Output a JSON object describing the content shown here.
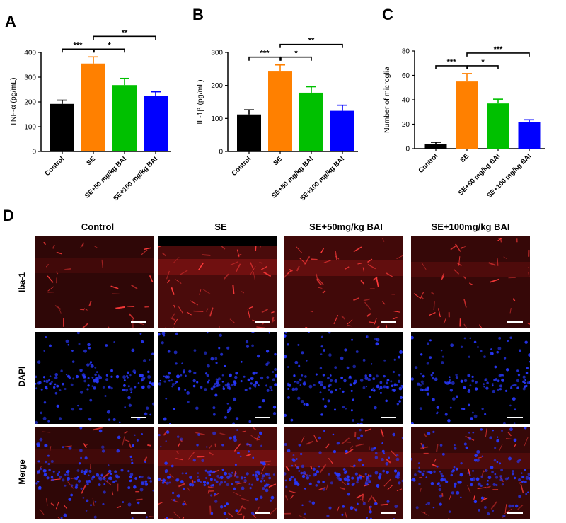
{
  "panels": {
    "A": "A",
    "B": "B",
    "C": "C",
    "D": "D"
  },
  "chart_data": [
    {
      "type": "bar",
      "panel": "A",
      "categories": [
        "Control",
        "SE",
        "SE+50 mg/kg BAI",
        "SE+100 mg/kg BAI"
      ],
      "values": [
        192,
        355,
        268,
        223
      ],
      "errors": [
        15,
        27,
        27,
        18
      ],
      "colors": [
        "#000000",
        "#FF8000",
        "#00C000",
        "#0000FF"
      ],
      "ylabel": "TNF-α (pg/mL)",
      "ylim": [
        0,
        400
      ],
      "yticks": [
        0,
        100,
        200,
        300,
        400
      ],
      "significance": [
        {
          "from": 0,
          "to": 1,
          "label": "***"
        },
        {
          "from": 1,
          "to": 2,
          "label": "*"
        },
        {
          "from": 1,
          "to": 3,
          "label": "**"
        }
      ]
    },
    {
      "type": "bar",
      "panel": "B",
      "categories": [
        "Control",
        "SE",
        "SE+50 mg/kg BAI",
        "SE+100 mg/kg BAI"
      ],
      "values": [
        112,
        242,
        178,
        123
      ],
      "errors": [
        14,
        20,
        18,
        17
      ],
      "colors": [
        "#000000",
        "#FF8000",
        "#00C000",
        "#0000FF"
      ],
      "ylabel": "IL-1β (pg/mL)",
      "ylim": [
        0,
        300
      ],
      "yticks": [
        0,
        100,
        200,
        300
      ],
      "significance": [
        {
          "from": 0,
          "to": 1,
          "label": "***"
        },
        {
          "from": 1,
          "to": 2,
          "label": "*"
        },
        {
          "from": 1,
          "to": 3,
          "label": "**"
        }
      ]
    },
    {
      "type": "bar",
      "panel": "C",
      "categories": [
        "Control",
        "SE",
        "SE+50 mg/kg BAI",
        "SE+100 mg/kg BAI"
      ],
      "values": [
        4,
        55,
        37,
        22
      ],
      "errors": [
        1.2,
        6.5,
        3.5,
        1.6
      ],
      "colors": [
        "#000000",
        "#FF8000",
        "#00C000",
        "#0000FF"
      ],
      "ylabel": "Number of microglia",
      "ylim": [
        0,
        80
      ],
      "yticks": [
        0,
        20,
        40,
        60,
        80
      ],
      "significance": [
        {
          "from": 0,
          "to": 1,
          "label": "***"
        },
        {
          "from": 1,
          "to": 2,
          "label": "*"
        },
        {
          "from": 1,
          "to": 3,
          "label": "***"
        }
      ]
    }
  ],
  "micrographs": {
    "columns": [
      "Control",
      "SE",
      "SE+50mg/kg BAI",
      "SE+100mg/kg BAI"
    ],
    "rows": [
      "Iba-1",
      "DAPI",
      "Merge"
    ],
    "colors": {
      "iba1": "#e02020",
      "dapi": "#2838ff",
      "background": "#000000"
    }
  }
}
